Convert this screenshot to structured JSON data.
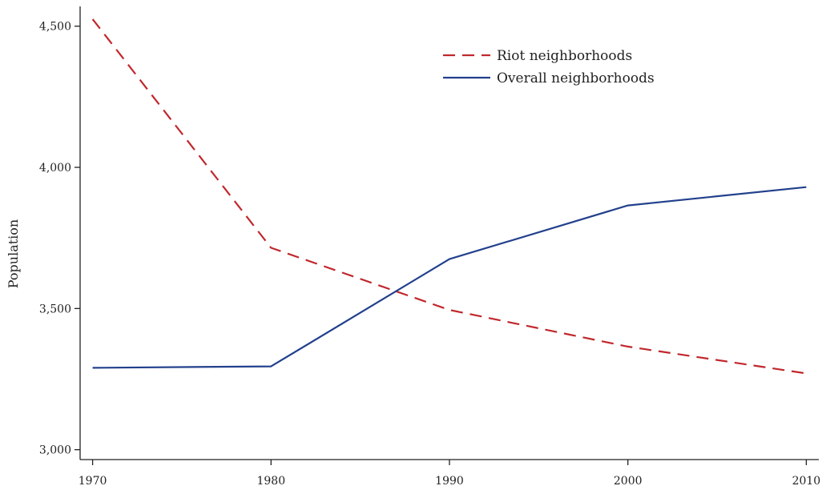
{
  "chart_data": {
    "type": "line",
    "title": "",
    "xlabel": "",
    "ylabel": "Population",
    "x": [
      1970,
      1980,
      1990,
      2000,
      2010
    ],
    "xlim": [
      1969.3,
      2010.7
    ],
    "ylim": [
      2965,
      4570
    ],
    "x_ticks": [
      "1970",
      "1980",
      "1990",
      "2000",
      "2010"
    ],
    "y_ticks": [
      {
        "value": 3000,
        "label": "3,000"
      },
      {
        "value": 3500,
        "label": "3,500"
      },
      {
        "value": 4000,
        "label": "4,000"
      },
      {
        "value": 4500,
        "label": "4,500"
      }
    ],
    "grid": false,
    "legend_position": "top-right",
    "series": [
      {
        "name": "Riot neighborhoods",
        "values": [
          4525,
          3715,
          3495,
          3365,
          3270
        ],
        "color": "#c0282d",
        "style": "dashed"
      },
      {
        "name": "Overall neighborhoods",
        "values": [
          3290,
          3295,
          3675,
          3865,
          3930
        ],
        "color": "#22408c",
        "style": "solid"
      }
    ]
  }
}
